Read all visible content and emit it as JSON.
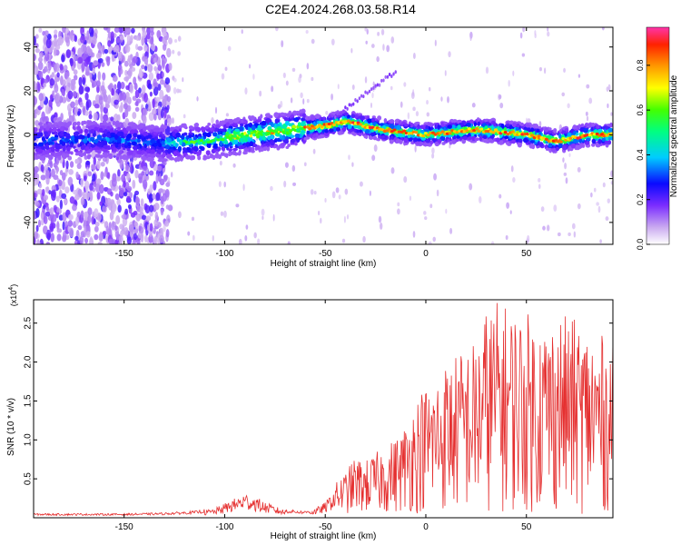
{
  "title": "C2E4.2024.268.03.58.R14",
  "chart_data": [
    {
      "type": "heatmap",
      "xlabel": "Height of straight line (km)",
      "ylabel": "Frequency (Hz)",
      "xlim": [
        -195,
        93
      ],
      "ylim": [
        -50,
        49
      ],
      "xticks": [
        -150,
        -100,
        -50,
        0,
        50
      ],
      "yticks": [
        -40,
        -20,
        0,
        20,
        40
      ],
      "colorbar": {
        "label": "Normalized spectral amplitude",
        "range": [
          0,
          0.97
        ],
        "ticks": [
          0.0,
          0.2,
          0.4,
          0.6,
          0.8
        ]
      },
      "ridge": {
        "x": [
          -195,
          -160,
          -130,
          -110,
          -95,
          -80,
          -70,
          -60,
          -50,
          -45,
          -40,
          -35,
          -30,
          -20,
          -10,
          0,
          10,
          20,
          30,
          40,
          50,
          55,
          60,
          65,
          70,
          80,
          93
        ],
        "y": [
          -3,
          -2,
          -4,
          -3,
          -1,
          1,
          2,
          3,
          4,
          5,
          6,
          5,
          4,
          2,
          1,
          0,
          1,
          2,
          2,
          1,
          0,
          -1,
          -2,
          -3,
          -2,
          0,
          0
        ]
      },
      "notes": "Broadband noise at heights below -130 km; spectral ridge near 0 Hz thereafter"
    },
    {
      "type": "line",
      "xlabel": "Height of straight line (km)",
      "ylabel": "SNR (10 * v/v)",
      "y_multiplier": "(x10",
      "y_multiplier_exp": "4",
      "y_multiplier_close": ")",
      "xlim": [
        -195,
        93
      ],
      "ylim": [
        0,
        2.8
      ],
      "xticks": [
        -150,
        -100,
        -50,
        0,
        50
      ],
      "yticks": [
        0.5,
        1.0,
        1.5,
        2.0,
        2.5
      ],
      "series": [
        {
          "color": "#e53030",
          "envelope_x": [
            -195,
            -150,
            -130,
            -115,
            -105,
            -95,
            -90,
            -85,
            -80,
            -70,
            -60,
            -55,
            -50,
            -45,
            -40,
            -35,
            -30,
            -25,
            -20,
            -15,
            -10,
            -5,
            0,
            5,
            10,
            15,
            20,
            25,
            30,
            35,
            40,
            45,
            50,
            55,
            60,
            65,
            70,
            75,
            80,
            85,
            90,
            93
          ],
          "envelope_y": [
            0.05,
            0.05,
            0.06,
            0.08,
            0.12,
            0.25,
            0.32,
            0.28,
            0.2,
            0.1,
            0.08,
            0.12,
            0.2,
            0.4,
            0.55,
            0.75,
            0.7,
            0.8,
            0.9,
            1.0,
            1.2,
            1.55,
            1.7,
            1.8,
            2.0,
            2.1,
            2.2,
            2.3,
            2.7,
            2.8,
            2.75,
            2.7,
            2.65,
            2.6,
            2.55,
            2.65,
            2.6,
            2.55,
            2.45,
            2.4,
            2.3,
            2.3
          ]
        }
      ]
    }
  ]
}
